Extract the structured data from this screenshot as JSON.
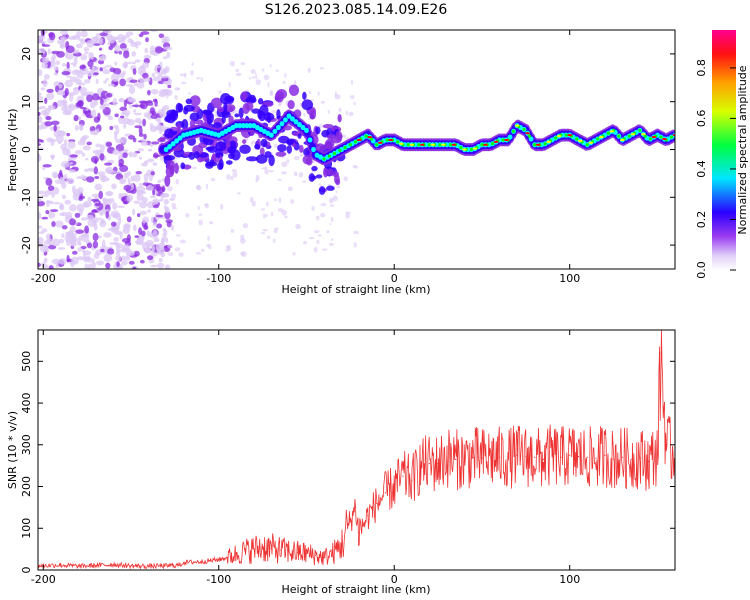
{
  "title": "S126.2023.085.14.09.E26",
  "chart_data": [
    {
      "type": "heatmap",
      "xlabel": "Height of straight line (km)",
      "ylabel": "Frequency (Hz)",
      "xlim": [
        -203,
        160
      ],
      "ylim": [
        -25,
        25
      ],
      "xticks": [
        -200,
        -100,
        0,
        100
      ],
      "yticks": [
        -20,
        -10,
        0,
        10,
        20
      ],
      "colorbar": {
        "label": "Normalized spectral amplitude",
        "range": [
          0.0,
          0.95
        ],
        "ticks": [
          "0.0",
          "0.2",
          "0.4",
          "0.6",
          "0.8"
        ]
      },
      "ridge": {
        "x": [
          -130,
          -120,
          -110,
          -100,
          -90,
          -80,
          -70,
          -60,
          -50,
          -45,
          -40,
          -35,
          -30,
          -25,
          -20,
          -15,
          -10,
          -5,
          0,
          5,
          10,
          15,
          20,
          25,
          30,
          35,
          40,
          45,
          50,
          55,
          60,
          65,
          70,
          75,
          80,
          85,
          90,
          95,
          100,
          105,
          110,
          115,
          120,
          125,
          130,
          135,
          140,
          145,
          150,
          155,
          160
        ],
        "freq": [
          0,
          3,
          4,
          3,
          5,
          5,
          3,
          7,
          4,
          -1,
          -2,
          -1,
          0,
          1,
          2,
          3,
          1,
          2,
          2,
          1,
          1,
          1,
          1,
          1,
          1,
          1,
          0,
          0,
          1,
          1,
          2,
          2,
          5,
          4,
          1,
          1,
          2,
          3,
          3,
          2,
          1,
          2,
          3,
          4,
          2,
          3,
          4,
          2,
          3,
          2,
          3
        ]
      },
      "colors": [
        "#dcc8f5",
        "#8a2be2",
        "#3300ff",
        "#00ffff",
        "#00ff00",
        "#ffff00",
        "#ff0000"
      ]
    },
    {
      "type": "line",
      "xlabel": "Height of straight line (km)",
      "ylabel": "SNR (10 * v/v)",
      "xlim": [
        -203,
        160
      ],
      "ylim": [
        0,
        575
      ],
      "xticks": [
        -200,
        -100,
        0,
        100
      ],
      "yticks": [
        0,
        100,
        200,
        300,
        400,
        500
      ],
      "line_color": "#ee3333",
      "series": [
        {
          "x": [
            -203,
            -190,
            -180,
            -170,
            -160,
            -150,
            -140,
            -130,
            -122,
            -120,
            -110,
            -100,
            -95,
            -90,
            -85,
            -80,
            -75,
            -70,
            -65,
            -60,
            -55,
            -50,
            -45,
            -40,
            -35,
            -30,
            -25,
            -22,
            -20,
            -15,
            -10,
            -5,
            0,
            5,
            10,
            15,
            20,
            25,
            30,
            35,
            40,
            45,
            50,
            55,
            60,
            65,
            70,
            75,
            80,
            85,
            90,
            95,
            100,
            105,
            110,
            115,
            120,
            125,
            130,
            135,
            140,
            145,
            150,
            152,
            155,
            160
          ],
          "y": [
            10,
            12,
            9,
            11,
            13,
            10,
            9,
            10,
            12,
            18,
            20,
            25,
            30,
            38,
            45,
            50,
            55,
            52,
            48,
            45,
            42,
            40,
            35,
            30,
            40,
            60,
            120,
            150,
            90,
            130,
            160,
            185,
            200,
            225,
            215,
            250,
            255,
            255,
            270,
            265,
            265,
            270,
            268,
            270,
            270,
            268,
            275,
            272,
            270,
            265,
            275,
            270,
            275,
            272,
            270,
            268,
            275,
            265,
            270,
            265,
            268,
            260,
            280,
            520,
            300,
            270
          ]
        }
      ]
    }
  ]
}
